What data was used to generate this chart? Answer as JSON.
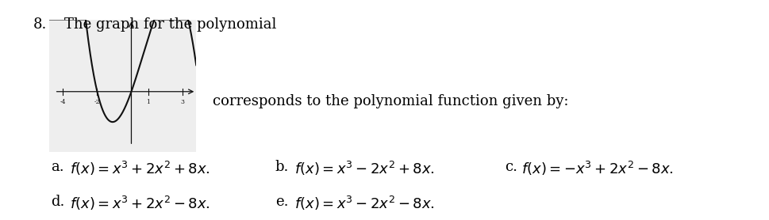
{
  "question_number": "8.",
  "question_text": "The graph for the polynomial",
  "corresponds_text": "corresponds to the polynomial function given by:",
  "graph_xlim": [
    -4.8,
    3.8
  ],
  "graph_ylim": [
    -10,
    12
  ],
  "graph_xticks_labels": [
    [
      -4,
      "-4"
    ],
    [
      -2,
      "-2"
    ],
    [
      1,
      "1"
    ],
    [
      3,
      "3"
    ]
  ],
  "graph_polynomial": [
    -1,
    2,
    8,
    0
  ],
  "graph_bg": "#eeeeee",
  "curve_color": "#111111",
  "axis_color": "#111111",
  "font_size_q": 13,
  "font_size_opts": 13,
  "opt_a_label": "a.",
  "opt_a_math": "$f(x)=x^3+2x^2+8x$.",
  "opt_b_label": "b.",
  "opt_b_math": "$f(x)=x^3-2x^2+8x$.",
  "opt_c_label": "c.",
  "opt_c_math": "$f(x)=-x^3+2x^2-8x$.",
  "opt_d_label": "d.",
  "opt_d_math": "$f(x)=x^3+2x^2-8x$.",
  "opt_e_label": "e.",
  "opt_e_math": "$f(x)=x^3-2x^2-8x$."
}
